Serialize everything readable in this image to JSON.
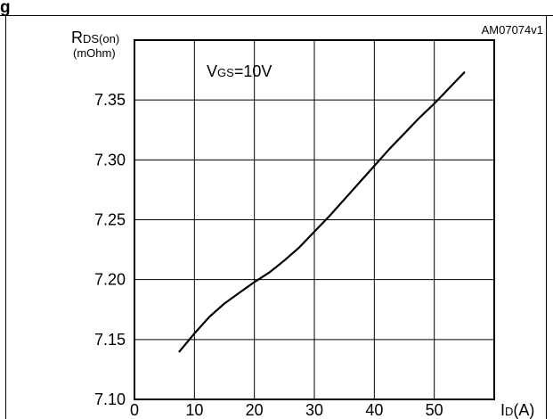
{
  "figure": {
    "corner_text": "g",
    "figure_id": "AM07074v1"
  },
  "chart_data": {
    "type": "line",
    "annotation": {
      "main": "V",
      "sub": "GS",
      "rest": "=10V"
    },
    "ylabel": {
      "main": "R",
      "sub": "DS(on)",
      "unit": "(mOhm)"
    },
    "xlabel": {
      "main": "I",
      "sub": "D",
      "rest": "(A)"
    },
    "xlim": [
      0,
      60
    ],
    "ylim": [
      7.1,
      7.4
    ],
    "xticks": [
      0,
      10,
      20,
      30,
      40,
      50
    ],
    "xtick_labels": [
      "0",
      "10",
      "20",
      "30",
      "40",
      "50"
    ],
    "yticks": [
      7.1,
      7.15,
      7.2,
      7.25,
      7.3,
      7.35
    ],
    "ytick_labels": [
      "7.10",
      "7.15",
      "7.20",
      "7.25",
      "7.30",
      "7.35"
    ],
    "grid": true,
    "series": [
      {
        "color": "#000000",
        "x": [
          7.5,
          10,
          12.5,
          15,
          17.5,
          20,
          22.5,
          25,
          27.5,
          30,
          32.5,
          35,
          37.5,
          40,
          42.5,
          45,
          47.5,
          50,
          52.5,
          55
        ],
        "y": [
          7.14,
          7.155,
          7.169,
          7.18,
          7.189,
          7.198,
          7.206,
          7.216,
          7.227,
          7.24,
          7.253,
          7.267,
          7.281,
          7.295,
          7.309,
          7.322,
          7.335,
          7.347,
          7.36,
          7.373
        ]
      }
    ]
  }
}
